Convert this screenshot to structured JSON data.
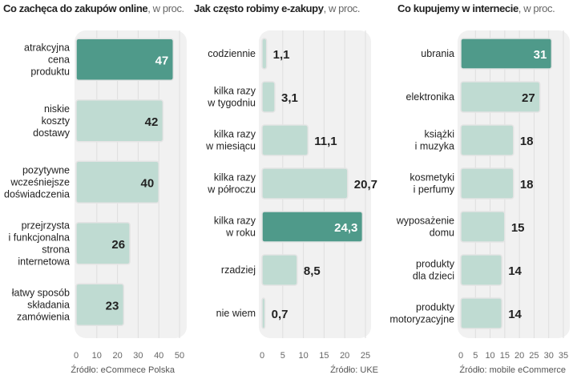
{
  "colors": {
    "highlight": "#4f9a8a",
    "bar": "#bfdbd2",
    "panel": "#f1f1f1"
  },
  "chart_data": [
    {
      "type": "bar",
      "title": "Co zachęca do zakupów online",
      "unit": ", w proc.",
      "categories": [
        "atrakcyjna|cena|produktu",
        "niskie|koszty|dostawy",
        "pozytywne|wcześniejsze|doświadczenia",
        "przejrzysta|i funkcjonalna|strona|internetowa",
        "łatwy sposób|składania|zamówienia"
      ],
      "values": [
        47,
        42,
        40,
        26,
        23
      ],
      "highlight": [
        0
      ],
      "xlim": [
        0,
        50
      ],
      "ticks": [
        0,
        10,
        20,
        30,
        40,
        50
      ],
      "source": "Źródło: eCommece Polska"
    },
    {
      "type": "bar",
      "title": "Jak często robimy e-zakupy",
      "unit": ", w proc.",
      "categories": [
        "codziennie",
        "kilka razy|w tygodniu",
        "kilka razy|w miesiącu",
        "kilka razy|w półroczu",
        "kilka razy|w roku",
        "rzadziej",
        "nie wiem"
      ],
      "values": [
        1.1,
        3.1,
        11.1,
        20.7,
        24.3,
        8.5,
        0.7
      ],
      "highlight": [
        4
      ],
      "xlim": [
        0,
        25
      ],
      "ticks": [
        0,
        5,
        10,
        15,
        20,
        25
      ],
      "source": "Źródło: UKE"
    },
    {
      "type": "bar",
      "title": "Co kupujemy w internecie",
      "unit": ", w proc.",
      "categories": [
        "ubrania",
        "elektronika",
        "książki|i muzyka",
        "kosmetyki|i perfumy",
        "wyposażenie|domu",
        "produkty|dla dzieci",
        "produkty|motoryzacyjne"
      ],
      "values": [
        31,
        27,
        18,
        18,
        15,
        14,
        14
      ],
      "highlight": [
        0
      ],
      "xlim": [
        0,
        35
      ],
      "ticks": [
        0,
        5,
        10,
        15,
        20,
        25,
        30,
        35
      ],
      "source": "Źródło: mobile eCommerce"
    }
  ]
}
